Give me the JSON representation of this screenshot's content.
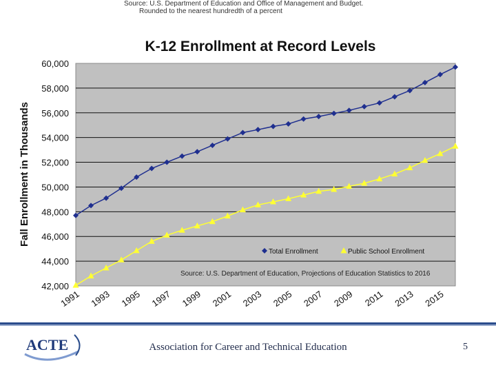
{
  "slide": {
    "source_note_line1": "Source: U.S. Department of Education and Office of Management and Budget.",
    "source_note_line2": "Rounded to the nearest hundredth of a percent"
  },
  "footer": {
    "logo_text": "ACTE",
    "org_name": "Association for Career and Technical Education",
    "page_number": "5"
  },
  "colors": {
    "plot_bg": "#c0c0c0",
    "total_series": "#1f2f8f",
    "public_series": "#ffff33",
    "footer_accent": "#2b4d8c"
  },
  "chart_data": {
    "type": "line",
    "title": "K-12 Enrollment at Record Levels",
    "xlabel": "",
    "ylabel": "Fall Enrollment in Thousands",
    "ylim": [
      42000,
      60000
    ],
    "yticks": [
      "42,000",
      "44,000",
      "46,000",
      "48,000",
      "50,000",
      "52,000",
      "54,000",
      "56,000",
      "58,000",
      "60,000"
    ],
    "xtick_labels": [
      "1991",
      "1993",
      "1995",
      "1997",
      "1999",
      "2001",
      "2003",
      "2005",
      "2007",
      "2009",
      "2011",
      "2013",
      "2015"
    ],
    "x": [
      1991,
      1992,
      1993,
      1994,
      1995,
      1996,
      1997,
      1998,
      1999,
      2000,
      2001,
      2002,
      2003,
      2004,
      2005,
      2006,
      2007,
      2008,
      2009,
      2010,
      2011,
      2012,
      2013,
      2014,
      2015,
      2016
    ],
    "series": [
      {
        "name": "Total Enrollment",
        "marker": "diamond",
        "values": [
          47700,
          48500,
          49100,
          49900,
          50800,
          51500,
          52000,
          52500,
          52850,
          53370,
          53890,
          54400,
          54640,
          54900,
          55100,
          55500,
          55700,
          55950,
          56200,
          56500,
          56800,
          57300,
          57800,
          58450,
          59100,
          59700
        ]
      },
      {
        "name": "Public School Enrollment",
        "marker": "triangle",
        "values": [
          42050,
          42800,
          43450,
          44100,
          44850,
          45600,
          46100,
          46500,
          46850,
          47200,
          47650,
          48150,
          48550,
          48800,
          49050,
          49350,
          49650,
          49800,
          50050,
          50300,
          50650,
          51050,
          51550,
          52150,
          52700,
          53300
        ]
      }
    ],
    "grid": true,
    "legend_position": "bottom-right",
    "annotation": "Source: U.S. Department of Education, Projections of Education Statistics to 2016"
  }
}
